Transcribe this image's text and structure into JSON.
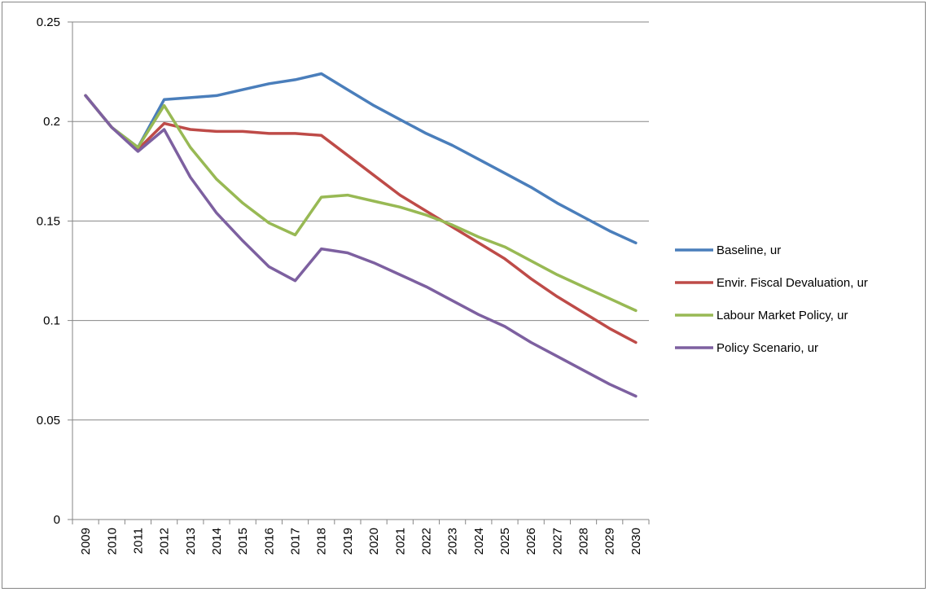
{
  "chart_data": {
    "type": "line",
    "title": "",
    "xlabel": "",
    "ylabel": "",
    "x": [
      "2009",
      "2010",
      "2011",
      "2012",
      "2013",
      "2014",
      "2015",
      "2016",
      "2017",
      "2018",
      "2019",
      "2020",
      "2021",
      "2022",
      "2023",
      "2024",
      "2025",
      "2026",
      "2027",
      "2028",
      "2029",
      "2030"
    ],
    "ylim": [
      0,
      0.25
    ],
    "yticks": [
      0,
      0.05,
      0.1,
      0.15,
      0.2,
      0.25
    ],
    "ytick_labels": [
      "0",
      "0.05",
      "0.1",
      "0.15",
      "0.2",
      "0.25"
    ],
    "grid": "horizontal major gridlines",
    "legend_position": "right",
    "series": [
      {
        "name": "Baseline, ur",
        "color": "#4a7ebb",
        "values": [
          0.213,
          0.197,
          0.187,
          0.211,
          0.212,
          0.213,
          0.216,
          0.219,
          0.221,
          0.224,
          0.216,
          0.208,
          0.201,
          0.194,
          0.188,
          0.181,
          0.174,
          0.167,
          0.159,
          0.152,
          0.145,
          0.139
        ]
      },
      {
        "name": "Envir. Fiscal Devaluation,  ur",
        "color": "#be4b48",
        "values": [
          0.213,
          0.197,
          0.186,
          0.199,
          0.196,
          0.195,
          0.195,
          0.194,
          0.194,
          0.193,
          0.183,
          0.173,
          0.163,
          0.155,
          0.147,
          0.139,
          0.131,
          0.121,
          0.112,
          0.104,
          0.096,
          0.089
        ]
      },
      {
        "name": "Labour Market Policy, ur",
        "color": "#98b954",
        "values": [
          0.213,
          0.197,
          0.187,
          0.208,
          0.187,
          0.171,
          0.159,
          0.149,
          0.143,
          0.162,
          0.163,
          0.16,
          0.157,
          0.153,
          0.148,
          0.142,
          0.137,
          0.13,
          0.123,
          0.117,
          0.111,
          0.105
        ]
      },
      {
        "name": "Policy Scenario, ur",
        "color": "#7d60a0",
        "values": [
          0.213,
          0.197,
          0.185,
          0.196,
          0.172,
          0.154,
          0.14,
          0.127,
          0.12,
          0.136,
          0.134,
          0.129,
          0.123,
          0.117,
          0.11,
          0.103,
          0.097,
          0.089,
          0.082,
          0.075,
          0.068,
          0.062
        ]
      }
    ]
  }
}
